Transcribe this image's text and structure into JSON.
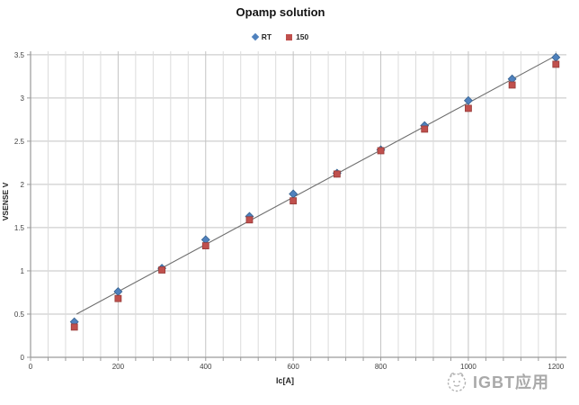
{
  "title": "Opamp solution",
  "axis_titles": {
    "x": "Ic[A]",
    "y": "VSENSE V"
  },
  "watermark": {
    "text": "IGBT应用",
    "logo": "mascot-sketch-icon",
    "color": "#a9a9a9"
  },
  "colors": {
    "series_rt": "#4f81bd",
    "series_rt_border": "#36618f",
    "series_150": "#c0504d",
    "series_150_border": "#963a37",
    "trendline": "#6e6e6e",
    "grid_major": "#c3c3c3",
    "grid_minor": "#dcdcdc",
    "axis": "#9a9a9a",
    "tick_text": "#3f3f3f"
  },
  "chart_data": {
    "type": "scatter",
    "title": "Opamp solution",
    "xlabel": "Ic[A]",
    "ylabel": "VSENSE V",
    "x": [
      100,
      200,
      300,
      400,
      500,
      600,
      700,
      800,
      900,
      1000,
      1100,
      1200
    ],
    "series": [
      {
        "name": "RT",
        "marker": "diamond",
        "color": "#4f81bd",
        "values": [
          0.41,
          0.76,
          1.03,
          1.36,
          1.63,
          1.89,
          2.13,
          2.4,
          2.68,
          2.97,
          3.22,
          3.47
        ]
      },
      {
        "name": "150",
        "marker": "square",
        "color": "#c0504d",
        "values": [
          0.35,
          0.68,
          1.01,
          1.29,
          1.59,
          1.81,
          2.12,
          2.39,
          2.64,
          2.88,
          3.15,
          3.39
        ]
      }
    ],
    "trendline": {
      "x1": 105,
      "y1": 0.5,
      "x2": 1200,
      "y2": 3.49
    },
    "xlim": [
      0,
      1224
    ],
    "ylim": [
      0,
      3.54
    ],
    "x_major_ticks": [
      0,
      200,
      400,
      600,
      800,
      1000,
      1200
    ],
    "x_minor_unit": 40,
    "y_ticks": [
      0,
      0.5,
      1,
      1.5,
      2,
      2.5,
      3,
      3.5
    ],
    "grid": true,
    "legend_position": "top-center"
  }
}
